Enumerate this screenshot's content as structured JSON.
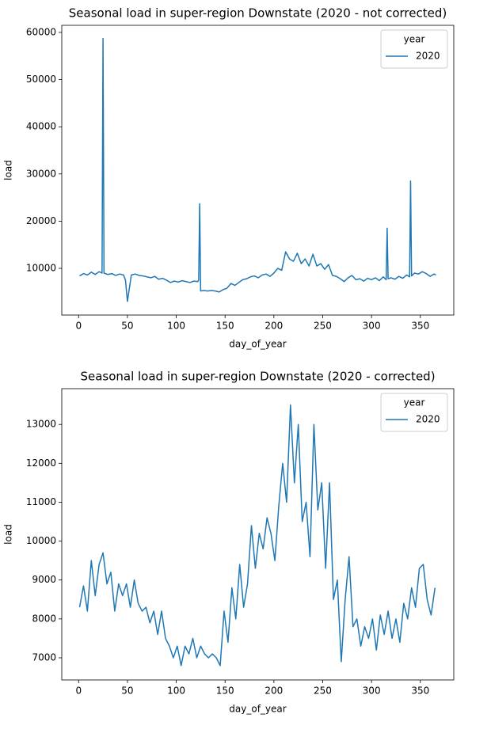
{
  "chart_data": [
    {
      "type": "line",
      "title": "Seasonal load in super-region Downstate (2020 - not corrected)",
      "x_label": "day_of_year",
      "y_label": "load",
      "legend_title": "year",
      "legend": "upper right",
      "xlim": [
        -17.25,
        384.25
      ],
      "xticks": [
        0,
        50,
        100,
        150,
        200,
        250,
        300,
        350
      ],
      "ylim": [
        110,
        61490
      ],
      "yticks": [
        10000,
        20000,
        30000,
        40000,
        50000,
        60000
      ],
      "x": [
        1,
        5,
        9,
        13,
        17,
        21,
        24,
        25,
        26,
        30,
        34,
        38,
        42,
        46,
        48,
        50,
        54,
        58,
        62,
        66,
        70,
        74,
        78,
        82,
        86,
        90,
        94,
        98,
        102,
        106,
        110,
        114,
        118,
        122,
        123,
        124,
        125,
        128,
        132,
        136,
        140,
        144,
        148,
        152,
        156,
        160,
        164,
        168,
        172,
        176,
        180,
        184,
        188,
        192,
        196,
        200,
        204,
        208,
        212,
        216,
        220,
        224,
        228,
        232,
        236,
        240,
        244,
        248,
        252,
        256,
        260,
        264,
        268,
        272,
        276,
        280,
        284,
        288,
        292,
        296,
        300,
        304,
        308,
        312,
        315,
        316,
        317,
        320,
        324,
        328,
        332,
        336,
        339,
        340,
        341,
        344,
        348,
        352,
        356,
        360,
        364,
        366
      ],
      "series": [
        {
          "name": "2020",
          "color": "#1f77b4",
          "values": [
            8400,
            8900,
            8600,
            9200,
            8700,
            9300,
            9000,
            58700,
            9000,
            8700,
            8900,
            8500,
            8800,
            8600,
            7500,
            3000,
            8600,
            8800,
            8500,
            8400,
            8200,
            8000,
            8300,
            7700,
            7900,
            7500,
            7000,
            7300,
            7100,
            7400,
            7200,
            7000,
            7300,
            7200,
            7500,
            23700,
            5200,
            5300,
            5200,
            5300,
            5200,
            5000,
            5500,
            5800,
            6800,
            6400,
            7000,
            7600,
            7800,
            8200,
            8400,
            8000,
            8600,
            8800,
            8300,
            9000,
            10000,
            9600,
            13500,
            12000,
            11500,
            13200,
            11000,
            12000,
            10500,
            13000,
            10500,
            11000,
            9800,
            10800,
            8500,
            8300,
            7800,
            7200,
            8000,
            8500,
            7600,
            7800,
            7300,
            7900,
            7600,
            8000,
            7400,
            8200,
            7600,
            18500,
            7800,
            8000,
            7700,
            8300,
            7900,
            8600,
            8200,
            28500,
            8400,
            9000,
            8800,
            9300,
            8900,
            8300,
            8800,
            8600
          ]
        }
      ]
    },
    {
      "type": "line",
      "title": "Seasonal load in super-region Downstate (2020 - corrected)",
      "x_label": "day_of_year",
      "y_label": "load",
      "legend_title": "year",
      "legend": "upper right",
      "xlim": [
        -17.25,
        384.25
      ],
      "xticks": [
        0,
        50,
        100,
        150,
        200,
        250,
        300,
        350
      ],
      "ylim": [
        6430,
        13920
      ],
      "yticks": [
        7000,
        8000,
        9000,
        10000,
        11000,
        12000,
        13000
      ],
      "x": [
        1,
        5,
        9,
        13,
        17,
        21,
        25,
        29,
        33,
        37,
        41,
        45,
        49,
        53,
        57,
        61,
        65,
        69,
        73,
        77,
        81,
        85,
        89,
        93,
        97,
        101,
        105,
        109,
        113,
        117,
        121,
        125,
        129,
        133,
        137,
        141,
        145,
        149,
        153,
        157,
        161,
        165,
        169,
        173,
        177,
        181,
        185,
        189,
        193,
        197,
        201,
        205,
        209,
        213,
        217,
        221,
        225,
        229,
        233,
        237,
        241,
        245,
        249,
        253,
        257,
        261,
        265,
        269,
        273,
        277,
        281,
        285,
        289,
        293,
        297,
        301,
        305,
        309,
        313,
        317,
        321,
        325,
        329,
        333,
        337,
        341,
        345,
        349,
        353,
        357,
        361,
        365
      ],
      "series": [
        {
          "name": "2020",
          "color": "#1f77b4",
          "values": [
            8300,
            8850,
            8200,
            9500,
            8600,
            9400,
            9700,
            8900,
            9200,
            8200,
            8900,
            8600,
            8900,
            8300,
            9000,
            8400,
            8200,
            8300,
            7900,
            8200,
            7600,
            8200,
            7500,
            7300,
            7000,
            7300,
            6800,
            7300,
            7100,
            7500,
            7000,
            7300,
            7100,
            7000,
            7100,
            7000,
            6800,
            8200,
            7400,
            8800,
            8000,
            9400,
            8300,
            8900,
            10400,
            9300,
            10200,
            9800,
            10600,
            10200,
            9500,
            10900,
            12000,
            11000,
            13500,
            11500,
            13000,
            10500,
            11000,
            9600,
            13000,
            10800,
            11500,
            9300,
            11500,
            8500,
            9000,
            6900,
            8500,
            9600,
            7800,
            8000,
            7300,
            7800,
            7500,
            8000,
            7200,
            8100,
            7600,
            8200,
            7500,
            8000,
            7400,
            8400,
            8000,
            8800,
            8300,
            9300,
            9400,
            8500,
            8100,
            8800
          ]
        }
      ]
    }
  ]
}
